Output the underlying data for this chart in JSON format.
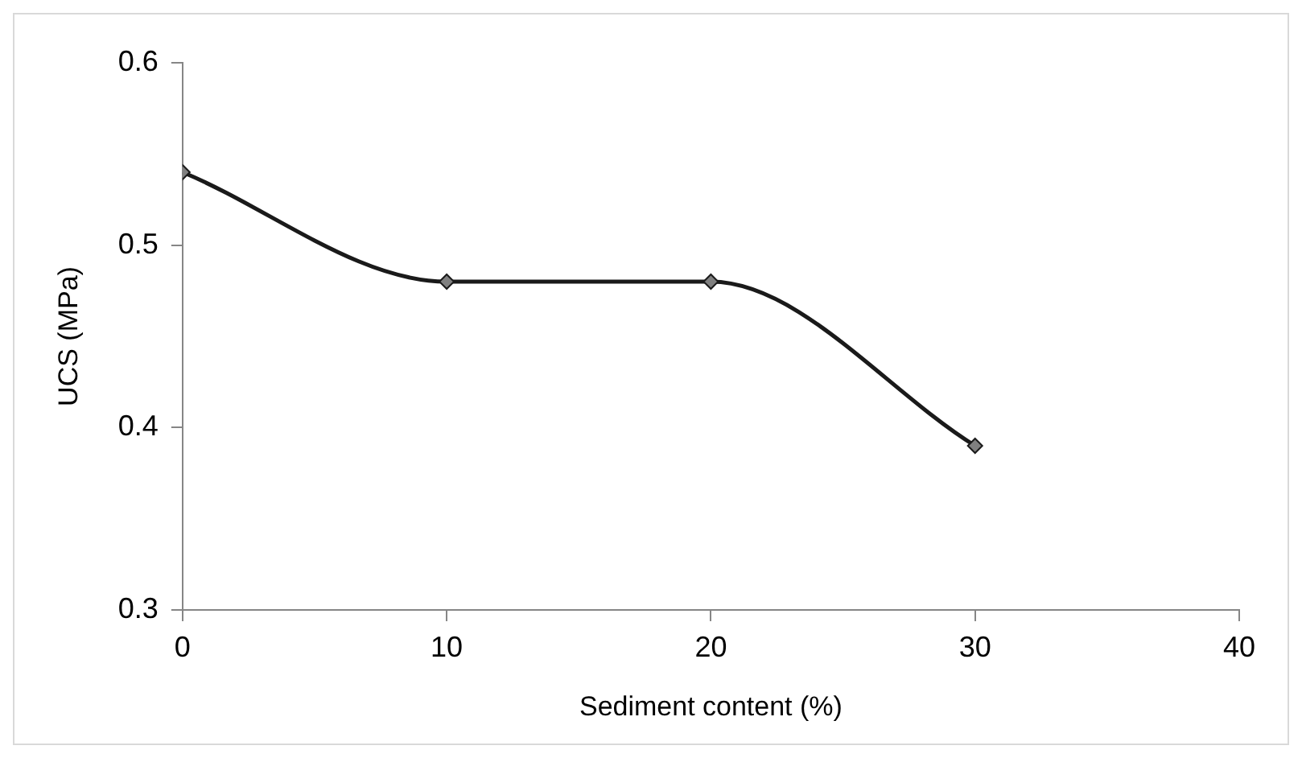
{
  "chart_data": {
    "type": "line",
    "xlabel": "Sediment content (%)",
    "ylabel": "UCS (MPa)",
    "x": [
      0,
      10,
      20,
      30
    ],
    "series": [
      {
        "color": "#1a1a1a",
        "values": [
          0.54,
          0.48,
          0.48,
          0.39
        ]
      }
    ],
    "xlim": [
      0,
      40
    ],
    "xticks": [
      0,
      10,
      20,
      30,
      40
    ],
    "ylim": [
      0.3,
      0.6
    ],
    "yticks": [
      0.3,
      0.4,
      0.5,
      0.6
    ],
    "grid": false,
    "legend": false,
    "marker": "diamond",
    "line_style": "solid"
  }
}
